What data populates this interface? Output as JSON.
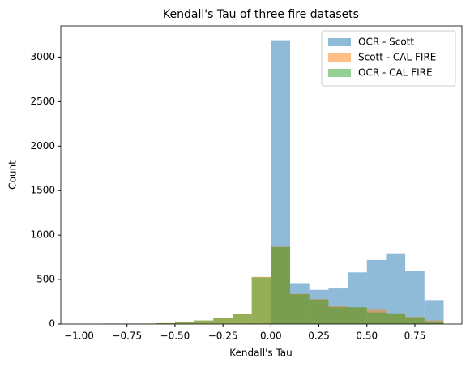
{
  "chart_data": {
    "type": "histogram",
    "title": "Kendall's Tau of three fire datasets",
    "x_label": "Kendall's Tau",
    "y_label": "Count",
    "bins": [
      -1.0,
      -0.9,
      -0.8,
      -0.7,
      -0.6,
      -0.5,
      -0.4,
      -0.3,
      -0.2,
      -0.1,
      0.0,
      0.1,
      0.2,
      0.3,
      0.4,
      0.5,
      0.6,
      0.7,
      0.8,
      0.9
    ],
    "series": [
      {
        "name": "OCR - Scott",
        "color": "#1f77b4",
        "values": [
          0,
          0,
          0,
          0,
          0,
          0,
          0,
          0,
          0,
          0,
          3190,
          460,
          385,
          400,
          580,
          720,
          795,
          595,
          270
        ]
      },
      {
        "name": "Scott - CAL FIRE",
        "color": "#ff7f0e",
        "values": [
          0,
          5,
          5,
          5,
          10,
          25,
          40,
          65,
          110,
          530,
          870,
          340,
          280,
          200,
          185,
          160,
          120,
          80,
          40
        ]
      },
      {
        "name": "OCR - CAL FIRE",
        "color": "#2ca02c",
        "values": [
          0,
          3,
          3,
          5,
          10,
          25,
          40,
          65,
          110,
          525,
          865,
          335,
          275,
          190,
          190,
          130,
          120,
          75,
          25
        ]
      }
    ],
    "opacity": 0.5,
    "xlim": [
      -1.095,
      0.995
    ],
    "xticks": [
      {
        "value": -1.0,
        "label": "−1.00"
      },
      {
        "value": -0.75,
        "label": "−0.75"
      },
      {
        "value": -0.5,
        "label": "−0.50"
      },
      {
        "value": -0.25,
        "label": "−0.25"
      },
      {
        "value": 0,
        "label": "0.00"
      },
      {
        "value": 0.25,
        "label": "0.25"
      },
      {
        "value": 0.5,
        "label": "0.50"
      },
      {
        "value": 0.75,
        "label": "0.75"
      }
    ],
    "ylim": [
      0,
      3350
    ],
    "yticks": [
      0,
      500,
      1000,
      1500,
      2000,
      2500,
      3000
    ],
    "legend": "upper right"
  }
}
